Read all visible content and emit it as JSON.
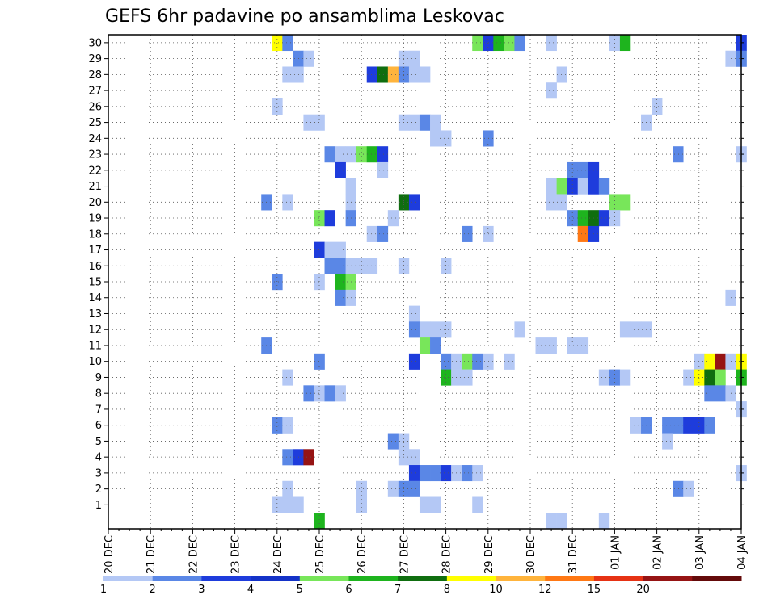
{
  "chart_data": {
    "type": "heatmap",
    "title": "GEFS 6hr padavine po ansamblima Leskovac",
    "xlabel": "",
    "ylabel": "",
    "x_ticks": [
      "20 DEC",
      "21 DEC",
      "22 DEC",
      "23 DEC",
      "24 DEC",
      "25 DEC",
      "26 DEC",
      "27 DEC",
      "28 DEC",
      "29 DEC",
      "30 DEC",
      "31 DEC",
      "01 JAN",
      "02 JAN",
      "03 JAN",
      "04 JAN"
    ],
    "y_ticks": [
      1,
      2,
      3,
      4,
      5,
      6,
      7,
      8,
      9,
      10,
      11,
      12,
      13,
      14,
      15,
      16,
      17,
      18,
      19,
      20,
      21,
      22,
      23,
      24,
      25,
      26,
      27,
      28,
      29,
      30
    ],
    "time_step_hours": 6,
    "grid": true,
    "colorbar": {
      "levels": [
        "1",
        "2",
        "3",
        "4",
        "5",
        "6",
        "7",
        "8",
        "10",
        "12",
        "15",
        "20"
      ],
      "colors": [
        "#b4c8f5",
        "#5a87e6",
        "#1e3cdc",
        "#1432c8",
        "#78e65a",
        "#1eb41e",
        "#0f6e0f",
        "#ffff00",
        "#ffb43c",
        "#ff7814",
        "#e63214",
        "#961414",
        "#640a0a"
      ]
    },
    "cells_note": "each cell: [member, 6h-step index from 20 DEC 00Z, colour class 1-13]",
    "cells": [
      [
        30,
        16,
        8
      ],
      [
        30,
        17,
        2
      ],
      [
        30,
        35,
        5
      ],
      [
        30,
        36,
        3
      ],
      [
        30,
        37,
        6
      ],
      [
        30,
        38,
        5
      ],
      [
        30,
        39,
        2
      ],
      [
        30,
        42,
        1
      ],
      [
        30,
        48,
        1
      ],
      [
        30,
        49,
        6
      ],
      [
        30,
        60,
        3
      ],
      [
        29,
        18,
        2
      ],
      [
        29,
        19,
        1
      ],
      [
        29,
        28,
        1
      ],
      [
        29,
        29,
        1
      ],
      [
        29,
        59,
        1
      ],
      [
        29,
        60,
        2
      ],
      [
        28,
        17,
        1
      ],
      [
        28,
        18,
        1
      ],
      [
        28,
        25,
        3
      ],
      [
        28,
        26,
        7
      ],
      [
        28,
        27,
        9
      ],
      [
        28,
        28,
        2
      ],
      [
        28,
        29,
        1
      ],
      [
        28,
        30,
        1
      ],
      [
        28,
        43,
        1
      ],
      [
        27,
        42,
        1
      ],
      [
        26,
        16,
        1
      ],
      [
        26,
        52,
        1
      ],
      [
        25,
        19,
        1
      ],
      [
        25,
        20,
        1
      ],
      [
        25,
        28,
        1
      ],
      [
        25,
        29,
        1
      ],
      [
        25,
        30,
        2
      ],
      [
        25,
        31,
        1
      ],
      [
        25,
        51,
        1
      ],
      [
        24,
        31,
        1
      ],
      [
        24,
        32,
        1
      ],
      [
        24,
        36,
        2
      ],
      [
        23,
        21,
        2
      ],
      [
        23,
        22,
        1
      ],
      [
        23,
        23,
        1
      ],
      [
        23,
        24,
        5
      ],
      [
        23,
        25,
        6
      ],
      [
        23,
        26,
        3
      ],
      [
        23,
        54,
        2
      ],
      [
        23,
        60,
        1
      ],
      [
        22,
        22,
        3
      ],
      [
        22,
        26,
        1
      ],
      [
        22,
        44,
        2
      ],
      [
        22,
        45,
        2
      ],
      [
        22,
        46,
        3
      ],
      [
        21,
        23,
        1
      ],
      [
        21,
        42,
        1
      ],
      [
        21,
        43,
        5
      ],
      [
        21,
        44,
        3
      ],
      [
        21,
        45,
        1
      ],
      [
        21,
        46,
        3
      ],
      [
        21,
        47,
        2
      ],
      [
        20,
        15,
        2
      ],
      [
        20,
        17,
        1
      ],
      [
        20,
        23,
        1
      ],
      [
        20,
        28,
        7
      ],
      [
        20,
        29,
        3
      ],
      [
        20,
        42,
        1
      ],
      [
        20,
        43,
        1
      ],
      [
        20,
        48,
        5
      ],
      [
        20,
        49,
        5
      ],
      [
        19,
        20,
        5
      ],
      [
        19,
        21,
        3
      ],
      [
        19,
        23,
        2
      ],
      [
        19,
        27,
        1
      ],
      [
        19,
        44,
        2
      ],
      [
        19,
        45,
        6
      ],
      [
        19,
        46,
        7
      ],
      [
        19,
        47,
        3
      ],
      [
        19,
        48,
        1
      ],
      [
        18,
        25,
        1
      ],
      [
        18,
        26,
        2
      ],
      [
        18,
        34,
        2
      ],
      [
        18,
        36,
        1
      ],
      [
        18,
        45,
        10
      ],
      [
        18,
        46,
        3
      ],
      [
        17,
        20,
        3
      ],
      [
        17,
        21,
        1
      ],
      [
        17,
        22,
        1
      ],
      [
        16,
        21,
        2
      ],
      [
        16,
        22,
        2
      ],
      [
        16,
        23,
        1
      ],
      [
        16,
        24,
        1
      ],
      [
        16,
        25,
        1
      ],
      [
        16,
        28,
        1
      ],
      [
        16,
        32,
        1
      ],
      [
        15,
        16,
        2
      ],
      [
        15,
        20,
        1
      ],
      [
        15,
        22,
        6
      ],
      [
        15,
        23,
        5
      ],
      [
        14,
        22,
        2
      ],
      [
        14,
        23,
        1
      ],
      [
        14,
        59,
        1
      ],
      [
        13,
        29,
        1
      ],
      [
        12,
        29,
        2
      ],
      [
        12,
        30,
        1
      ],
      [
        12,
        31,
        1
      ],
      [
        12,
        32,
        1
      ],
      [
        12,
        39,
        1
      ],
      [
        12,
        49,
        1
      ],
      [
        12,
        50,
        1
      ],
      [
        12,
        51,
        1
      ],
      [
        11,
        15,
        2
      ],
      [
        11,
        30,
        5
      ],
      [
        11,
        31,
        2
      ],
      [
        11,
        41,
        1
      ],
      [
        11,
        42,
        1
      ],
      [
        11,
        44,
        1
      ],
      [
        11,
        45,
        1
      ],
      [
        10,
        20,
        2
      ],
      [
        10,
        29,
        3
      ],
      [
        10,
        32,
        2
      ],
      [
        10,
        33,
        1
      ],
      [
        10,
        34,
        5
      ],
      [
        10,
        35,
        2
      ],
      [
        10,
        36,
        1
      ],
      [
        10,
        38,
        1
      ],
      [
        10,
        56,
        1
      ],
      [
        10,
        57,
        8
      ],
      [
        10,
        58,
        12
      ],
      [
        10,
        59,
        1
      ],
      [
        10,
        60,
        8
      ],
      [
        9,
        17,
        1
      ],
      [
        9,
        32,
        6
      ],
      [
        9,
        33,
        1
      ],
      [
        9,
        34,
        1
      ],
      [
        9,
        47,
        1
      ],
      [
        9,
        48,
        2
      ],
      [
        9,
        49,
        1
      ],
      [
        9,
        55,
        1
      ],
      [
        9,
        56,
        8
      ],
      [
        9,
        57,
        7
      ],
      [
        9,
        58,
        5
      ],
      [
        9,
        60,
        6
      ],
      [
        8,
        19,
        2
      ],
      [
        8,
        20,
        1
      ],
      [
        8,
        21,
        2
      ],
      [
        8,
        22,
        1
      ],
      [
        8,
        57,
        2
      ],
      [
        8,
        58,
        2
      ],
      [
        8,
        59,
        1
      ],
      [
        7,
        60,
        1
      ],
      [
        6,
        16,
        2
      ],
      [
        6,
        17,
        1
      ],
      [
        6,
        50,
        1
      ],
      [
        6,
        51,
        2
      ],
      [
        6,
        53,
        2
      ],
      [
        6,
        54,
        2
      ],
      [
        6,
        55,
        3
      ],
      [
        6,
        56,
        3
      ],
      [
        6,
        57,
        2
      ],
      [
        5,
        27,
        2
      ],
      [
        5,
        28,
        1
      ],
      [
        5,
        53,
        1
      ],
      [
        4,
        17,
        2
      ],
      [
        4,
        18,
        3
      ],
      [
        4,
        19,
        12
      ],
      [
        4,
        28,
        1
      ],
      [
        4,
        29,
        1
      ],
      [
        3,
        29,
        3
      ],
      [
        3,
        30,
        2
      ],
      [
        3,
        31,
        2
      ],
      [
        3,
        32,
        3
      ],
      [
        3,
        33,
        1
      ],
      [
        3,
        34,
        2
      ],
      [
        3,
        35,
        1
      ],
      [
        3,
        60,
        1
      ],
      [
        2,
        17,
        1
      ],
      [
        2,
        24,
        1
      ],
      [
        2,
        27,
        1
      ],
      [
        2,
        28,
        2
      ],
      [
        2,
        29,
        2
      ],
      [
        2,
        54,
        2
      ],
      [
        2,
        55,
        1
      ],
      [
        1,
        16,
        1
      ],
      [
        1,
        17,
        1
      ],
      [
        1,
        18,
        1
      ],
      [
        1,
        24,
        1
      ],
      [
        1,
        30,
        1
      ],
      [
        1,
        31,
        1
      ],
      [
        1,
        35,
        1
      ],
      [
        0,
        20,
        6
      ],
      [
        0,
        42,
        1
      ],
      [
        0,
        43,
        1
      ],
      [
        0,
        47,
        1
      ]
    ]
  }
}
